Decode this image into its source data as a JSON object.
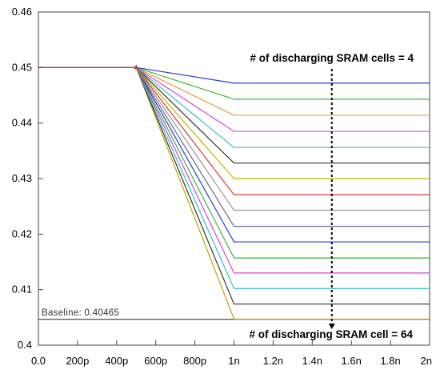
{
  "chart_data": {
    "type": "line",
    "title": "",
    "xlabel": "",
    "ylabel": "",
    "xlim": [
      0,
      2000
    ],
    "ylim": [
      0.4,
      0.46
    ],
    "x_unit": "ps",
    "x_ticks": [
      {
        "value": 0,
        "label": "0.0"
      },
      {
        "value": 200,
        "label": "200p"
      },
      {
        "value": 400,
        "label": "400p"
      },
      {
        "value": 600,
        "label": "600p"
      },
      {
        "value": 800,
        "label": "800p"
      },
      {
        "value": 1000,
        "label": "1n"
      },
      {
        "value": 1200,
        "label": "1.2n"
      },
      {
        "value": 1400,
        "label": "1.4n"
      },
      {
        "value": 1600,
        "label": "1.6n"
      },
      {
        "value": 1800,
        "label": "1.8n"
      },
      {
        "value": 2000,
        "label": "2n"
      }
    ],
    "y_ticks": [
      {
        "value": 0.4,
        "label": "0.4"
      },
      {
        "value": 0.41,
        "label": "0.41"
      },
      {
        "value": 0.42,
        "label": "0.42"
      },
      {
        "value": 0.43,
        "label": "0.43"
      },
      {
        "value": 0.44,
        "label": "0.44"
      },
      {
        "value": 0.45,
        "label": "0.45"
      },
      {
        "value": 0.46,
        "label": "0.46"
      }
    ],
    "grid": false,
    "legend": "none",
    "start_level": 0.45,
    "discharge_start": 500,
    "discharge_end": 1000,
    "series": [
      {
        "end_value": 0.4472,
        "color": "#2b3fd6"
      },
      {
        "end_value": 0.4443,
        "color": "#3cb83c"
      },
      {
        "end_value": 0.4414,
        "color": "#f09a3a"
      },
      {
        "end_value": 0.4385,
        "color": "#e040e0"
      },
      {
        "end_value": 0.4356,
        "color": "#2ec4c4"
      },
      {
        "end_value": 0.4328,
        "color": "#333333"
      },
      {
        "end_value": 0.43,
        "color": "#c8b400"
      },
      {
        "end_value": 0.4271,
        "color": "#d23c3c"
      },
      {
        "end_value": 0.4243,
        "color": "#999999"
      },
      {
        "end_value": 0.4214,
        "color": "#6c6c9c"
      },
      {
        "end_value": 0.4186,
        "color": "#2b3fd6"
      },
      {
        "end_value": 0.4157,
        "color": "#3cb83c"
      },
      {
        "end_value": 0.413,
        "color": "#e040e0"
      },
      {
        "end_value": 0.4102,
        "color": "#2ec4c4"
      },
      {
        "end_value": 0.4074,
        "color": "#333333"
      },
      {
        "end_value": 0.4047,
        "color": "#c8a000"
      }
    ],
    "baseline": {
      "value": 0.40465,
      "label": "Baseline: 0.40465"
    },
    "annotations": {
      "top": {
        "text": "# of discharging SRAM cells = 4"
      },
      "bottom": {
        "text": "# of discharging SRAM cell = 64"
      },
      "arrow_x": 1500
    }
  }
}
